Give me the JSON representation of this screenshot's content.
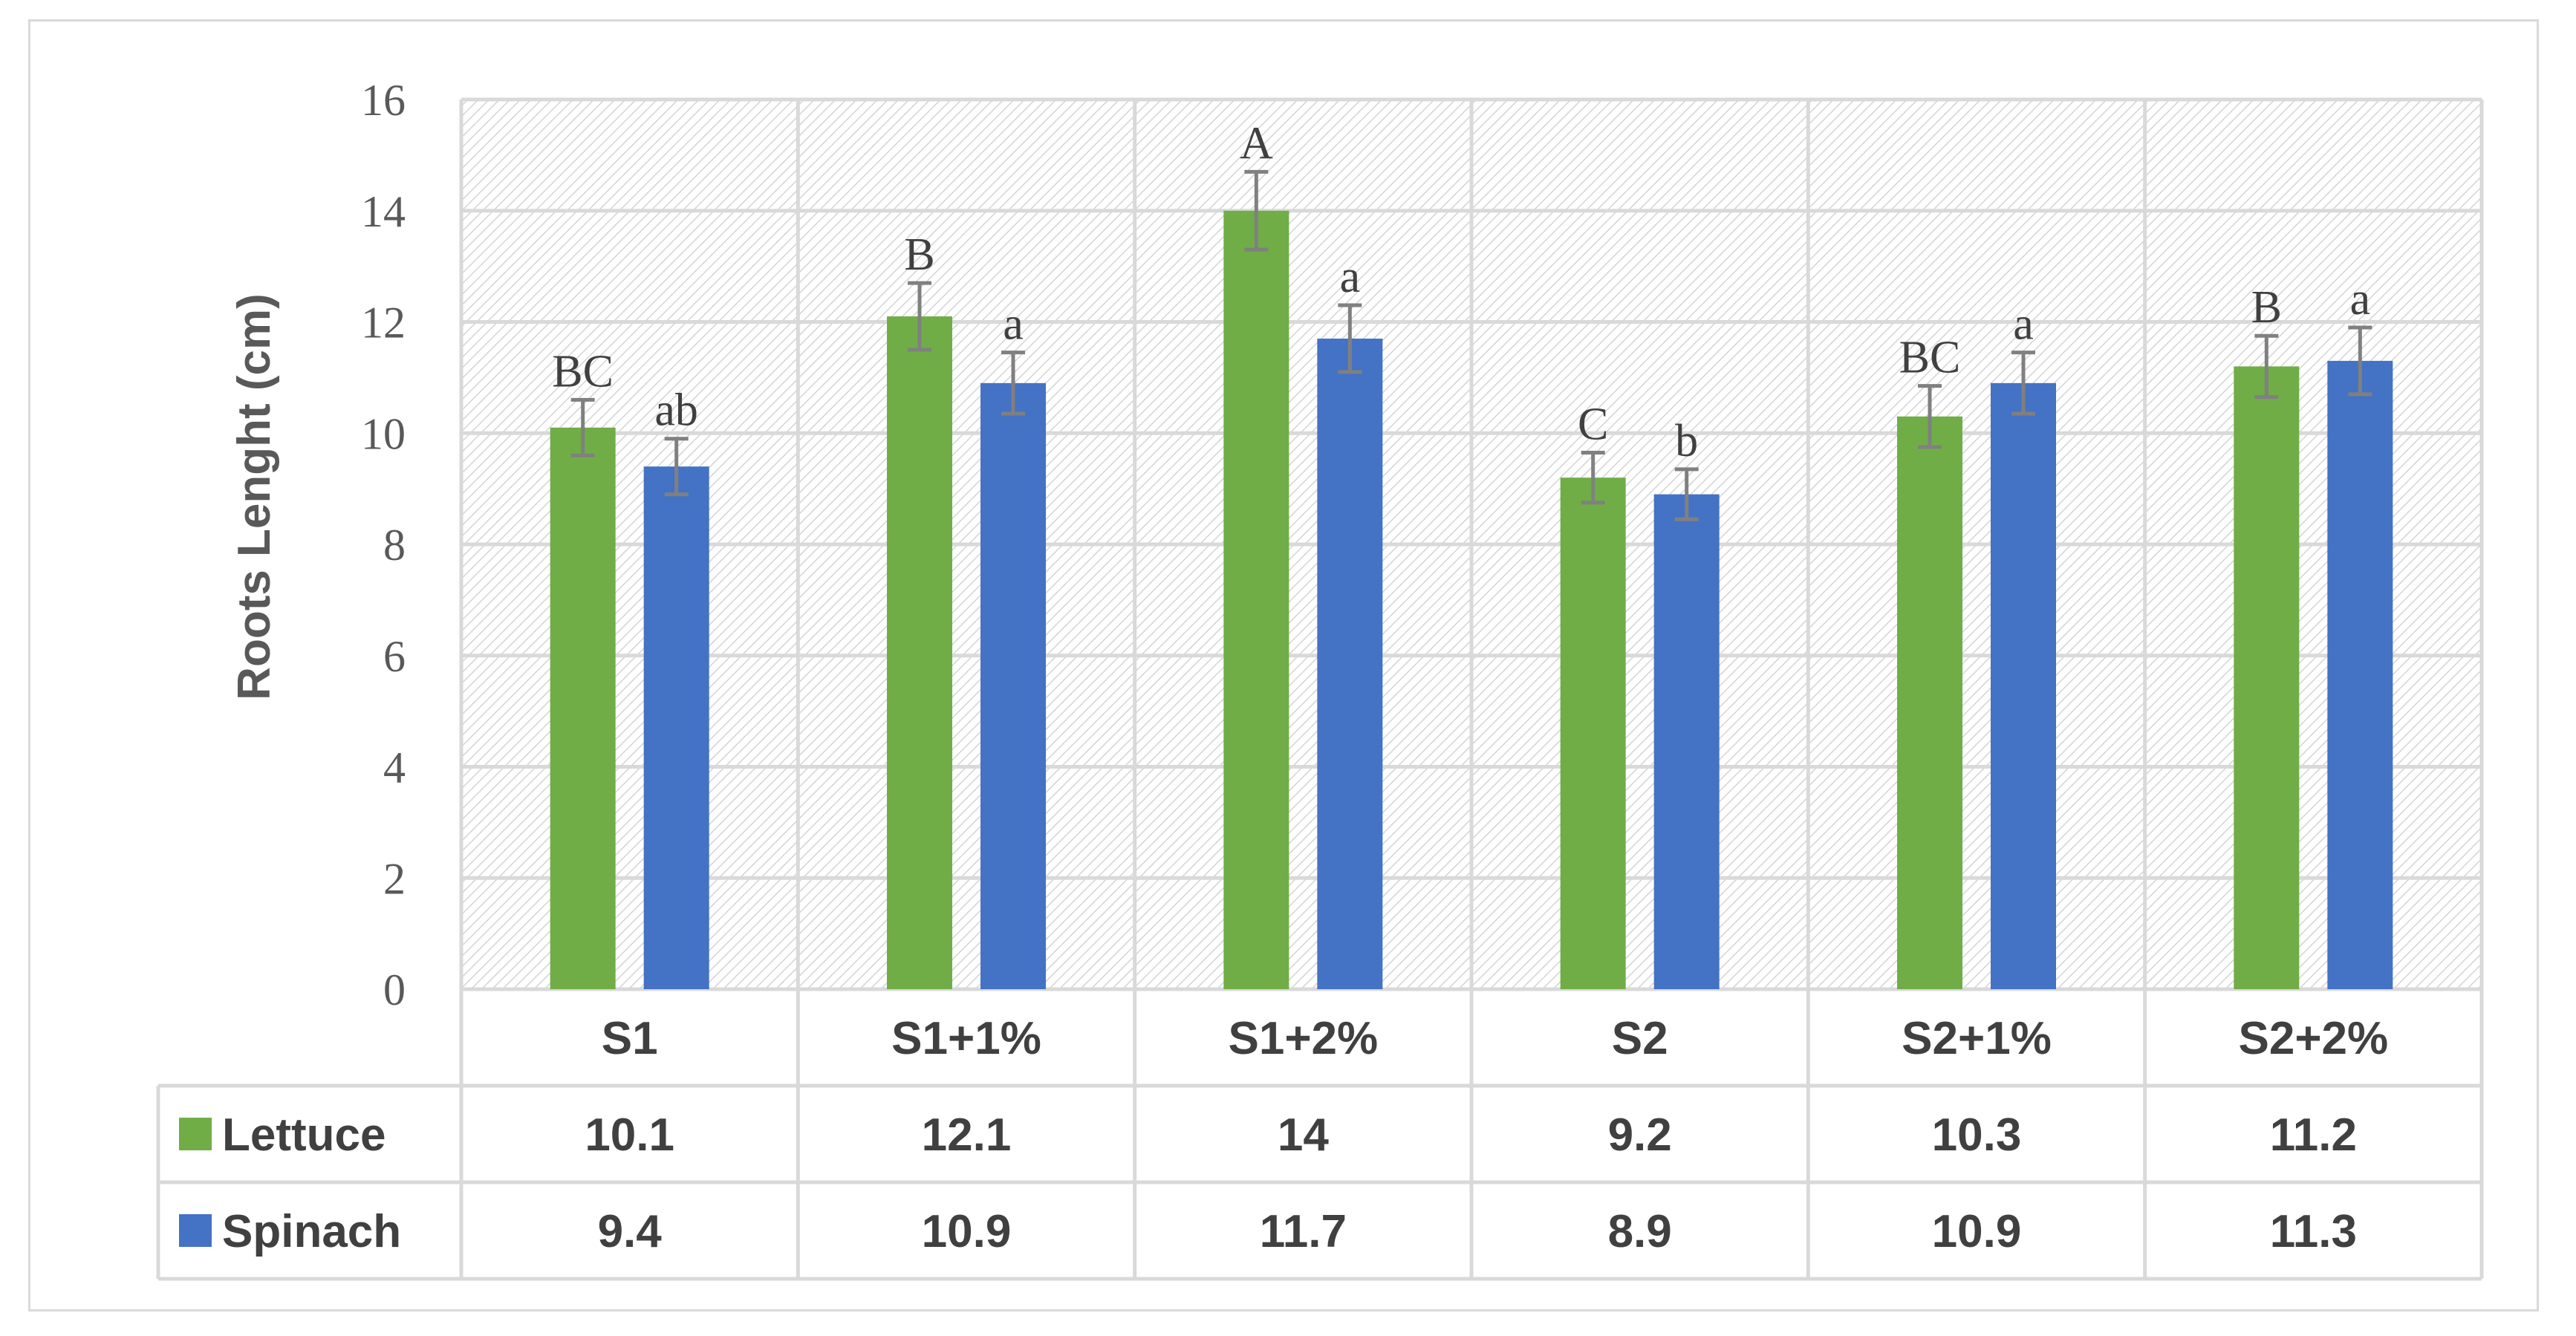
{
  "chart_data": {
    "type": "bar",
    "title": "",
    "xlabel": "",
    "ylabel": "Roots Lenght (cm)",
    "ylim": [
      0,
      16
    ],
    "yticks": [
      0,
      2,
      4,
      6,
      8,
      10,
      12,
      14,
      16
    ],
    "grid": true,
    "categories": [
      "S1",
      "S1+1%",
      "S1+2%",
      "S2",
      "S2+1%",
      "S2+2%"
    ],
    "series": [
      {
        "name": "Lettuce",
        "color": "#70ad47",
        "values": [
          10.1,
          12.1,
          14,
          9.2,
          10.3,
          11.2
        ],
        "table_values": [
          "10.1",
          "12.1",
          "14",
          "9.2",
          "10.3",
          "11.2"
        ],
        "error": [
          0.5,
          0.6,
          0.7,
          0.45,
          0.55,
          0.55
        ],
        "letters": [
          "BC",
          "B",
          "A",
          "C",
          "BC",
          "B"
        ]
      },
      {
        "name": "Spinach",
        "color": "#4472c4",
        "values": [
          9.4,
          10.9,
          11.7,
          8.9,
          10.9,
          11.3
        ],
        "table_values": [
          "9.4",
          "10.9",
          "11.7",
          "8.9",
          "10.9",
          "11.3"
        ],
        "error": [
          0.5,
          0.55,
          0.6,
          0.45,
          0.55,
          0.6
        ],
        "letters": [
          "ab",
          "a",
          "a",
          "b",
          "a",
          "a"
        ]
      }
    ],
    "legend": "data-table-left"
  },
  "colors": {
    "grid": "#d9d9d9",
    "error_bar": "#808080",
    "hatch": "#cfcfcf"
  }
}
